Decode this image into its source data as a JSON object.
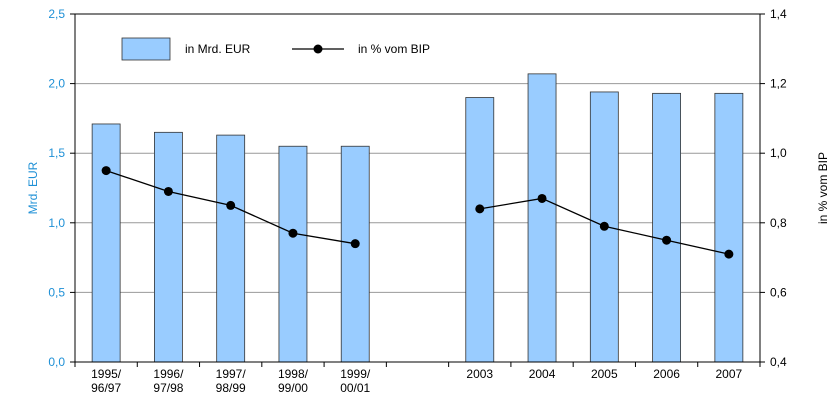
{
  "chart_data": {
    "type": "bar_line",
    "categories": [
      "1995/\n96/97",
      "1996/\n97/98",
      "1997/\n98/99",
      "1998/\n99/00",
      "1999/\n00/01",
      null,
      "2003",
      "2004",
      "2005",
      "2006",
      "2007"
    ],
    "series": [
      {
        "name": "in Mrd. EUR",
        "type": "bar",
        "color": "#99ccff",
        "values": [
          1.71,
          1.65,
          1.63,
          1.55,
          1.55,
          null,
          1.9,
          2.07,
          1.94,
          1.93,
          1.93
        ]
      },
      {
        "name": "in % vom BIP",
        "type": "line",
        "axis": "y2",
        "color": "#000000",
        "values": [
          0.95,
          0.89,
          0.85,
          0.77,
          0.74,
          null,
          0.84,
          0.87,
          0.79,
          0.75,
          0.71
        ]
      }
    ],
    "ylabel": "Mrd. EUR",
    "y2label": "in % vom BIP",
    "ylim": [
      0,
      2.5
    ],
    "yticks": [
      {
        "value": 0,
        "label": "0,0"
      },
      {
        "value": 0.5,
        "label": "0,5"
      },
      {
        "value": 1,
        "label": "1,0"
      },
      {
        "value": 1.5,
        "label": "1,5"
      },
      {
        "value": 2,
        "label": "2,0"
      },
      {
        "value": 2.5,
        "label": "2,5"
      }
    ],
    "y2lim": [
      0.4,
      1.4
    ],
    "y2ticks": [
      {
        "value": 0.4,
        "label": "0,4"
      },
      {
        "value": 0.6,
        "label": "0,6"
      },
      {
        "value": 0.8,
        "label": "0,8"
      },
      {
        "value": 1,
        "label": "1,0"
      },
      {
        "value": 1.2,
        "label": "1,2"
      },
      {
        "value": 1.4,
        "label": "1,4"
      }
    ],
    "grid": true
  }
}
